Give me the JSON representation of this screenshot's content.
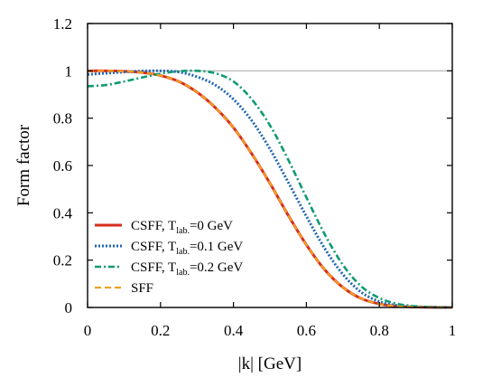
{
  "chart_data": {
    "type": "line",
    "xlabel": "|k| [GeV]",
    "ylabel": "Form factor",
    "xlim": [
      0,
      1
    ],
    "ylim": [
      0,
      1.2
    ],
    "xticks": [
      0,
      0.2,
      0.4,
      0.6,
      0.8,
      1
    ],
    "yticks": [
      0,
      0.2,
      0.4,
      0.6,
      0.8,
      1,
      1.2
    ],
    "xtick_labels": [
      "0",
      "0.2",
      "0.4",
      "0.6",
      "0.8",
      "1"
    ],
    "ytick_labels": [
      "0",
      "0.2",
      "0.4",
      "0.6",
      "0.8",
      "1",
      "1.2"
    ],
    "reference_line": {
      "y": 1,
      "color": "#b0b0b0"
    },
    "legend_position": "bottom-left",
    "series": [
      {
        "legend_main": "CSFF, T",
        "legend_sub": "lab.",
        "legend_tail": "=0 GeV",
        "color": "#d62d1e",
        "dash": "solid",
        "x": [
          0,
          0.05,
          0.1,
          0.15,
          0.2,
          0.25,
          0.3,
          0.35,
          0.4,
          0.45,
          0.5,
          0.55,
          0.6,
          0.65,
          0.7,
          0.75,
          0.8,
          0.85,
          0.9,
          0.95,
          1.0
        ],
        "y": [
          1.0,
          1.0,
          0.998,
          0.993,
          0.98,
          0.955,
          0.91,
          0.845,
          0.76,
          0.65,
          0.525,
          0.39,
          0.265,
          0.16,
          0.085,
          0.038,
          0.015,
          0.005,
          0.002,
          0.0005,
          0.0
        ]
      },
      {
        "legend_main": "CSFF, T",
        "legend_sub": "lab.",
        "legend_tail": "=0.1 GeV",
        "color": "#1f66b8",
        "dash": "dotted",
        "x": [
          0,
          0.05,
          0.1,
          0.15,
          0.2,
          0.25,
          0.3,
          0.35,
          0.4,
          0.45,
          0.5,
          0.55,
          0.6,
          0.65,
          0.7,
          0.75,
          0.8,
          0.85,
          0.9,
          0.95,
          1.0
        ],
        "y": [
          0.985,
          0.99,
          0.995,
          0.999,
          1.0,
          0.995,
          0.975,
          0.94,
          0.88,
          0.79,
          0.67,
          0.53,
          0.385,
          0.25,
          0.14,
          0.065,
          0.025,
          0.008,
          0.003,
          0.001,
          0.0
        ]
      },
      {
        "legend_main": "CSFF, T",
        "legend_sub": "lab.",
        "legend_tail": "=0.2 GeV",
        "color": "#0f9a73",
        "dash": "dashdot",
        "x": [
          0,
          0.05,
          0.1,
          0.15,
          0.2,
          0.25,
          0.3,
          0.35,
          0.4,
          0.45,
          0.5,
          0.55,
          0.6,
          0.65,
          0.7,
          0.75,
          0.8,
          0.85,
          0.9,
          0.95,
          1.0
        ],
        "y": [
          0.935,
          0.94,
          0.955,
          0.972,
          0.988,
          0.998,
          1.0,
          0.99,
          0.955,
          0.88,
          0.77,
          0.625,
          0.465,
          0.31,
          0.18,
          0.09,
          0.04,
          0.015,
          0.005,
          0.001,
          0.0
        ]
      },
      {
        "legend_main": "SFF",
        "legend_sub": "",
        "legend_tail": "",
        "color": "#f0a020",
        "dash": "dashed",
        "x": [
          0,
          0.05,
          0.1,
          0.15,
          0.2,
          0.25,
          0.3,
          0.35,
          0.4,
          0.45,
          0.5,
          0.55,
          0.6,
          0.65,
          0.7,
          0.75,
          0.8,
          0.85,
          0.9,
          0.95,
          1.0
        ],
        "y": [
          1.0,
          1.0,
          0.998,
          0.993,
          0.98,
          0.955,
          0.91,
          0.845,
          0.76,
          0.65,
          0.525,
          0.39,
          0.265,
          0.16,
          0.085,
          0.038,
          0.015,
          0.005,
          0.002,
          0.0005,
          0.0
        ]
      }
    ]
  }
}
